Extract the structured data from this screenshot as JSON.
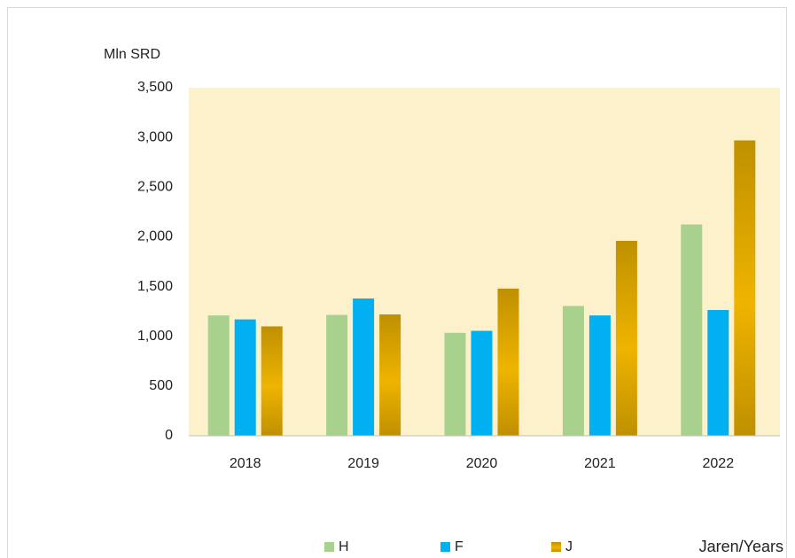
{
  "chart_data": {
    "type": "bar",
    "y_label": "Mln SRD",
    "x_label": "Jaren/Years",
    "categories": [
      "2018",
      "2019",
      "2020",
      "2021",
      "2022"
    ],
    "series": [
      {
        "name": "H",
        "color": "#a9d18e",
        "values": [
          1210,
          1215,
          1035,
          1305,
          2125
        ]
      },
      {
        "name": "F",
        "color": "#00b0f0",
        "values": [
          1170,
          1380,
          1055,
          1210,
          1265
        ]
      },
      {
        "name": "J",
        "color": "#bf9000",
        "values": [
          1100,
          1220,
          1480,
          1960,
          2970
        ],
        "gradient": true
      }
    ],
    "ylim": [
      0,
      3500
    ],
    "yticks": [
      0,
      500,
      {
        "value": 1000,
        "label": "1,000"
      },
      {
        "value": 1500,
        "label": "1,500"
      },
      {
        "value": 2000,
        "label": "2,000"
      },
      {
        "value": 2500,
        "label": "2,500"
      },
      {
        "value": 3000,
        "label": "3,000"
      },
      {
        "value": 3500,
        "label": "3,500"
      }
    ],
    "plot_background": "#fdf1cc",
    "grid": false,
    "legend": "bottom"
  }
}
